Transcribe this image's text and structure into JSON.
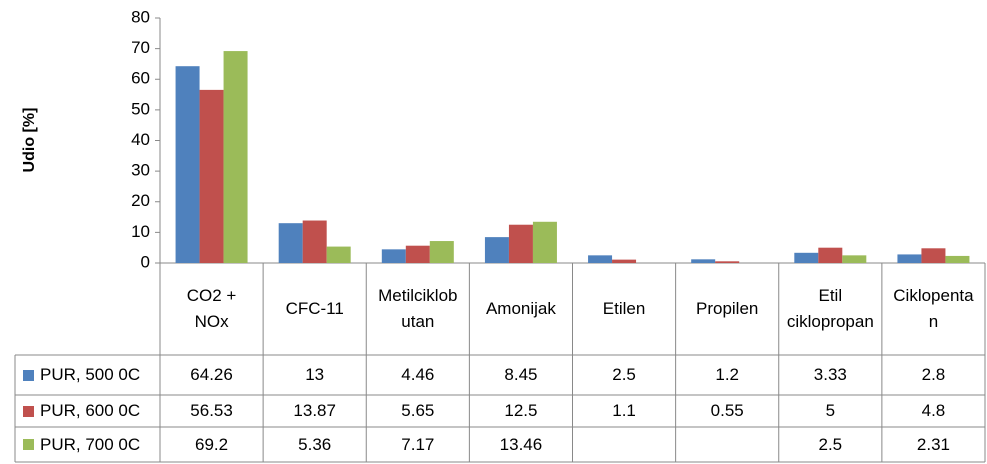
{
  "chart_data": {
    "type": "bar",
    "y_label": "Udio [%]",
    "categories": [
      "CO2 + NOx",
      "CFC-11",
      "Metilciklobutan",
      "Amonijak",
      "Etilen",
      "Propilen",
      "Etil ciklopropan",
      "Ciklopentan"
    ],
    "series": [
      {
        "name": "PUR, 500 0C",
        "color": "#4f81bd",
        "values": [
          64.26,
          13,
          4.46,
          8.45,
          2.5,
          1.2,
          3.33,
          2.8
        ]
      },
      {
        "name": "PUR, 600 0C",
        "color": "#c0504d",
        "values": [
          56.53,
          13.87,
          5.65,
          12.5,
          1.1,
          0.55,
          5,
          4.8
        ]
      },
      {
        "name": "PUR, 700 0C",
        "color": "#9bbb59",
        "values": [
          69.2,
          5.36,
          7.17,
          13.46,
          null,
          null,
          2.5,
          2.31
        ]
      }
    ],
    "ylim": [
      0,
      80
    ],
    "yticks": [
      0,
      10,
      20,
      30,
      40,
      50,
      60,
      70,
      80
    ],
    "grid": false
  }
}
